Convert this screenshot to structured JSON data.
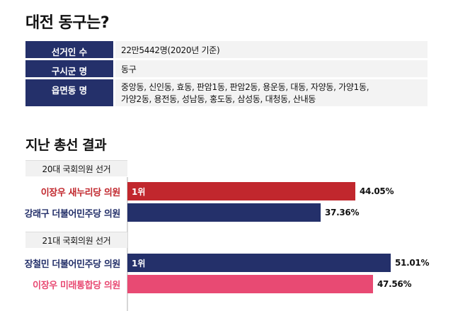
{
  "title": "대전 동구는?",
  "info": {
    "voters_label": "선거인 수",
    "voters_value": "22만5442명(2020년 기준)",
    "district_label": "구시군 명",
    "district_value": "동구",
    "towns_label": "읍면동 명",
    "towns_value_line1": "중앙동, 신인동, 효동, 판암1동, 판암2동, 용운동, 대동, 자양동, 가양1동,",
    "towns_value_line2": "가양2동, 용전동, 성남동, 홍도동, 삼성동, 대청동, 산내동"
  },
  "section_title": "지난 총선 결과",
  "colors": {
    "navy": "#24306a",
    "red": "#c1272d",
    "pink": "#e84a73"
  },
  "chart_data": {
    "type": "bar",
    "orientation": "horizontal",
    "title": "",
    "xlim": [
      0,
      60
    ],
    "groups": [
      {
        "name": "20대 국회의원 선거",
        "bars": [
          {
            "label": "이장우 새누리당 의원",
            "value": 44.05,
            "value_label": "44.05%",
            "rank": "1위",
            "color": "#c1272d"
          },
          {
            "label": "강래구 더불어민주당 의원",
            "value": 37.36,
            "value_label": "37.36%",
            "rank": "",
            "color": "#24306a"
          }
        ]
      },
      {
        "name": "21대 국회의원 선거",
        "bars": [
          {
            "label": "장철민 더불어민주당 의원",
            "value": 51.01,
            "value_label": "51.01%",
            "rank": "1위",
            "color": "#24306a"
          },
          {
            "label": "이장우 미래통합당 의원",
            "value": 47.56,
            "value_label": "47.56%",
            "rank": "",
            "color": "#e84a73"
          }
        ]
      }
    ]
  }
}
